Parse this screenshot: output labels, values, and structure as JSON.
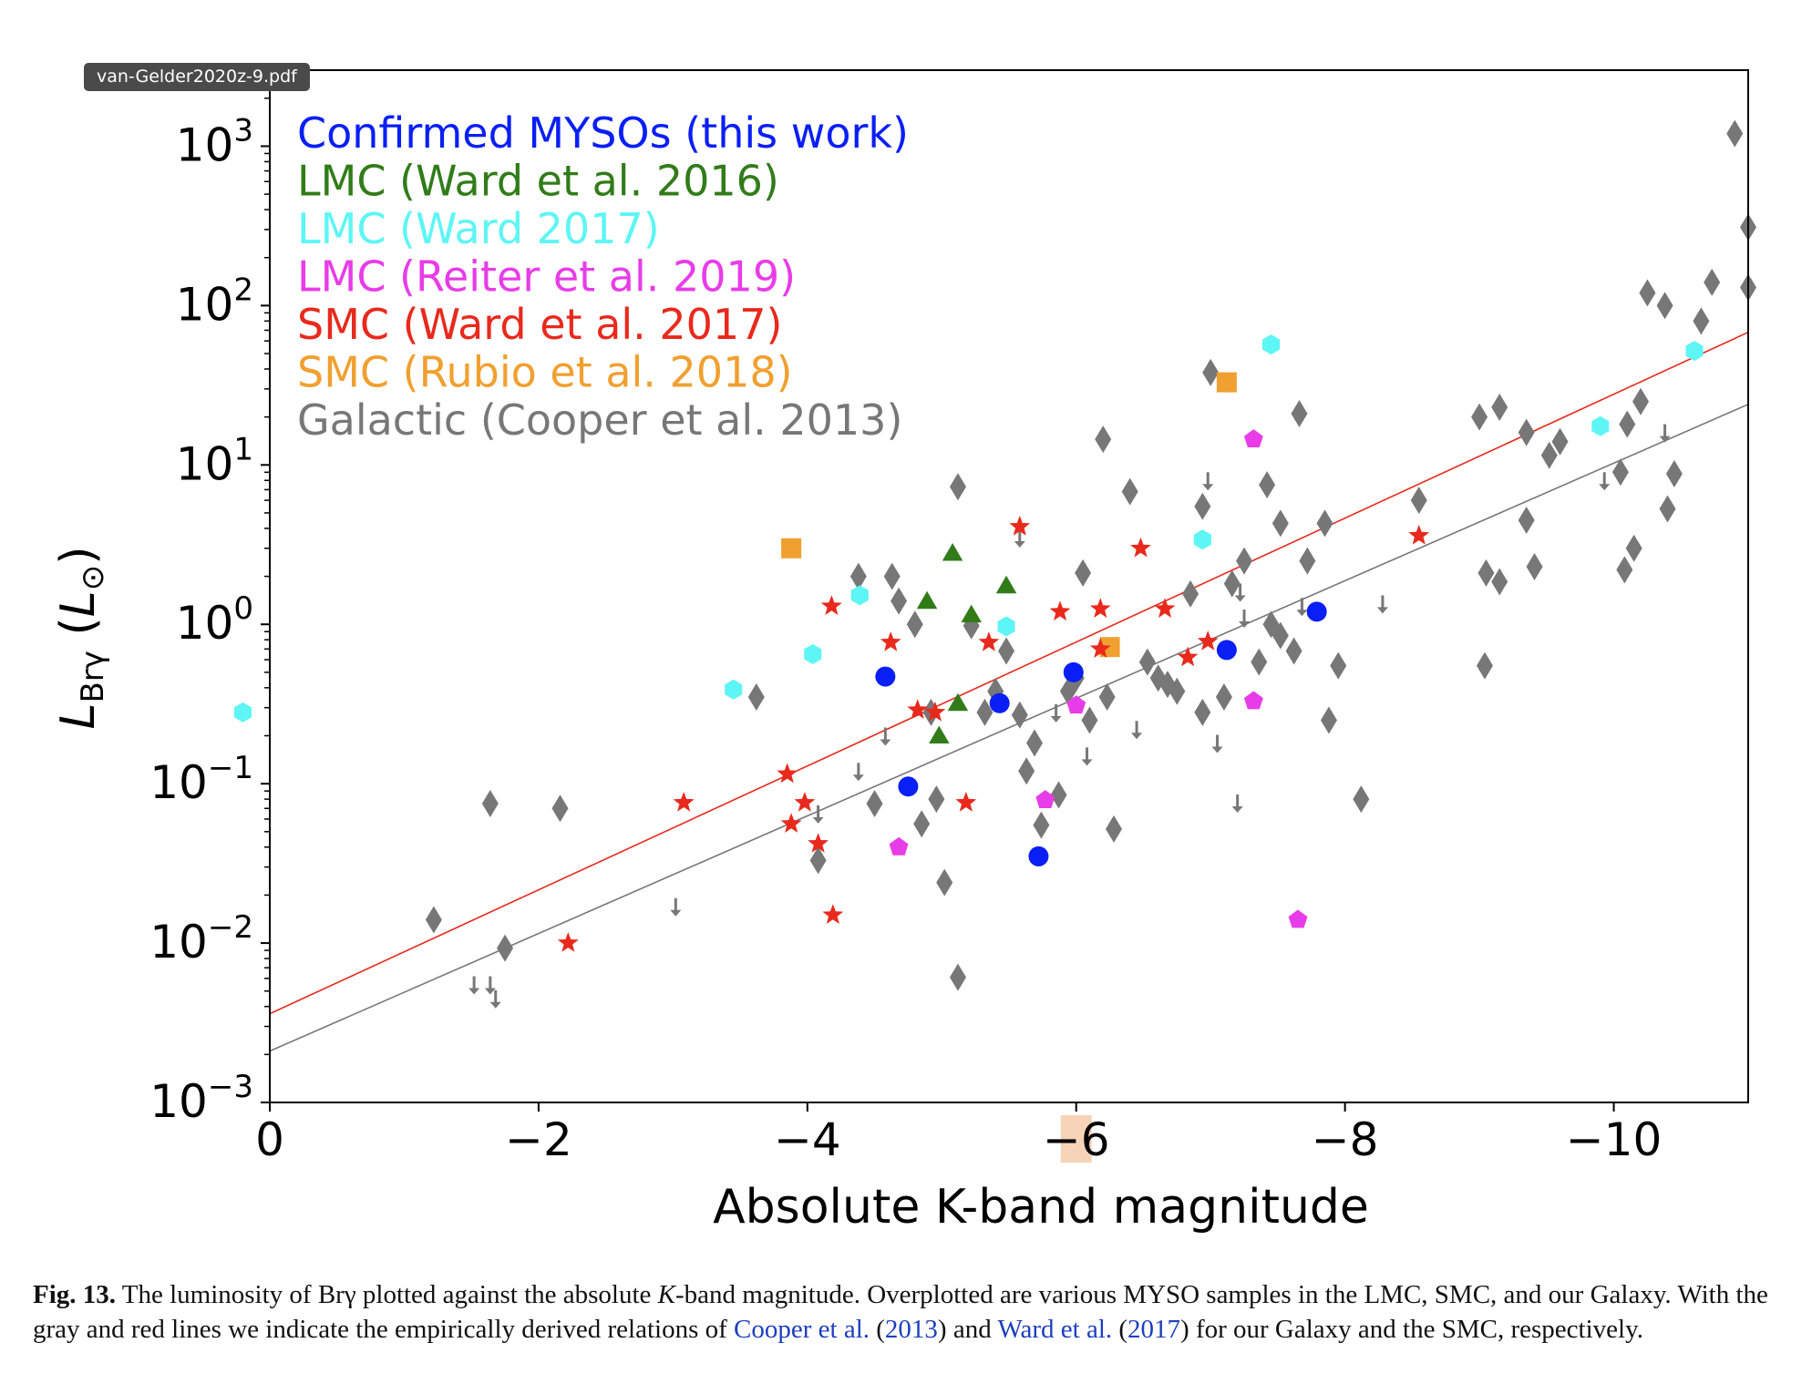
{
  "file_tab": "van-Gelder2020z-9.pdf",
  "caption": {
    "label": "Fig. 13.",
    "text_1": " The luminosity of Brγ plotted against the absolute ",
    "k_italic": "K",
    "text_2": "-band magnitude. Overplotted are various MYSO samples in the LMC, SMC, and our Galaxy. With the gray and red lines we indicate the empirically derived relations of ",
    "link_1": "Cooper et al.",
    "text_3": " (",
    "link_2": "2013",
    "text_4": ") and ",
    "link_3": "Ward et al.",
    "text_5": " (",
    "link_4": "2017",
    "text_6": ") for our Galaxy and the SMC, respectively."
  },
  "chart_data": {
    "type": "scatter",
    "xlabel": "Absolute K-band magnitude",
    "ylabel": "L_Brγ (L_⊙)",
    "xlim": [
      0,
      -11
    ],
    "ylim": [
      0.001,
      3000
    ],
    "yscale": "log",
    "x_ticks": [
      {
        "v": 0,
        "label": "0"
      },
      {
        "v": -2,
        "label": "−2"
      },
      {
        "v": -4,
        "label": "−4"
      },
      {
        "v": -6,
        "label": "−6"
      },
      {
        "v": -8,
        "label": "−8"
      },
      {
        "v": -10,
        "label": "−10"
      }
    ],
    "y_ticks": [
      {
        "v": 0.001,
        "exp": "−3"
      },
      {
        "v": 0.01,
        "exp": "−2"
      },
      {
        "v": 0.1,
        "exp": "−1"
      },
      {
        "v": 1,
        "exp": "0"
      },
      {
        "v": 10,
        "exp": "1"
      },
      {
        "v": 100,
        "exp": "2"
      },
      {
        "v": 1000,
        "exp": "3"
      }
    ],
    "highlighted_tick": "−6",
    "legend_position": "top-left",
    "fit_lines": [
      {
        "color": "#e8291c",
        "points": [
          [
            0,
            0.0036
          ],
          [
            -11,
            68
          ]
        ]
      },
      {
        "color": "#777777",
        "points": [
          [
            0,
            0.0021
          ],
          [
            -11,
            24
          ]
        ]
      }
    ],
    "series": [
      {
        "name": "Confirmed MYSOs (this work)",
        "color": "#0a1ff5",
        "marker": "circle",
        "points": [
          [
            -4.58,
            0.47
          ],
          [
            -4.75,
            0.096
          ],
          [
            -5.43,
            0.32
          ],
          [
            -5.72,
            0.035
          ],
          [
            -5.98,
            0.5
          ],
          [
            -7.12,
            0.69
          ],
          [
            -7.79,
            1.2
          ]
        ]
      },
      {
        "name": "LMC (Ward et al. 2016)",
        "color": "#317c19",
        "marker": "triangle",
        "points": [
          [
            -4.89,
            1.4
          ],
          [
            -5.08,
            2.8
          ],
          [
            -5.22,
            1.15
          ],
          [
            -5.48,
            1.75
          ],
          [
            -5.12,
            0.32
          ],
          [
            -4.98,
            0.2
          ]
        ]
      },
      {
        "name": "LMC (Ward 2017)",
        "color": "#5ef5f5",
        "marker": "hexagon",
        "points": [
          [
            0.2,
            0.28
          ],
          [
            -3.45,
            0.39
          ],
          [
            -4.04,
            0.65
          ],
          [
            -4.39,
            1.52
          ],
          [
            -5.48,
            0.97
          ],
          [
            -6.94,
            3.4
          ],
          [
            -7.45,
            57
          ],
          [
            -9.9,
            17.5
          ],
          [
            -10.6,
            52
          ]
        ]
      },
      {
        "name": "LMC (Reiter et al. 2019)",
        "color": "#e83ce8",
        "marker": "pentagon",
        "points": [
          [
            -4.68,
            0.04
          ],
          [
            -5.77,
            0.079
          ],
          [
            -6.0,
            0.31
          ],
          [
            -7.32,
            14.5
          ],
          [
            -7.32,
            0.33
          ],
          [
            -7.65,
            0.014
          ]
        ]
      },
      {
        "name": "SMC (Ward et al. 2017)",
        "color": "#e8291c",
        "marker": "star",
        "points": [
          [
            -2.22,
            0.01
          ],
          [
            -3.08,
            0.076
          ],
          [
            -3.85,
            0.115
          ],
          [
            -3.88,
            0.056
          ],
          [
            -3.98,
            0.076
          ],
          [
            -4.08,
            0.042
          ],
          [
            -4.18,
            1.3
          ],
          [
            -4.19,
            0.015
          ],
          [
            -4.62,
            0.77
          ],
          [
            -4.82,
            0.29
          ],
          [
            -4.95,
            0.28
          ],
          [
            -5.18,
            0.076
          ],
          [
            -5.35,
            0.77
          ],
          [
            -5.58,
            4.1
          ],
          [
            -5.88,
            1.2
          ],
          [
            -6.18,
            1.25
          ],
          [
            -6.18,
            0.7
          ],
          [
            -6.48,
            3.0
          ],
          [
            -6.66,
            1.25
          ],
          [
            -6.83,
            0.62
          ],
          [
            -6.98,
            0.78
          ],
          [
            -8.55,
            3.6
          ]
        ]
      },
      {
        "name": "SMC (Rubio et al. 2018)",
        "color": "#f0a030",
        "marker": "square",
        "points": [
          [
            -3.88,
            3.0
          ],
          [
            -6.25,
            0.72
          ],
          [
            -7.12,
            33
          ]
        ]
      },
      {
        "name": "Galactic (Cooper et al. 2013)",
        "color": "#777777",
        "marker": "diamond",
        "points": [
          [
            -1.22,
            0.014
          ],
          [
            -1.64,
            0.075
          ],
          [
            -1.75,
            0.0093
          ],
          [
            -2.16,
            0.07
          ],
          [
            -3.62,
            0.35
          ],
          [
            -4.08,
            0.033
          ],
          [
            -4.38,
            2.0
          ],
          [
            -4.5,
            0.075
          ],
          [
            -4.63,
            2.0
          ],
          [
            -4.68,
            1.4
          ],
          [
            -4.8,
            1.0
          ],
          [
            -4.85,
            0.056
          ],
          [
            -4.92,
            0.28
          ],
          [
            -4.96,
            0.08
          ],
          [
            -5.02,
            0.024
          ],
          [
            -5.12,
            0.0061
          ],
          [
            -5.12,
            7.3
          ],
          [
            -5.22,
            0.98
          ],
          [
            -5.32,
            0.28
          ],
          [
            -5.4,
            0.38
          ],
          [
            -5.48,
            0.68
          ],
          [
            -5.58,
            0.27
          ],
          [
            -5.63,
            0.12
          ],
          [
            -5.69,
            0.18
          ],
          [
            -5.74,
            0.055
          ],
          [
            -5.87,
            0.085
          ],
          [
            -5.94,
            0.38
          ],
          [
            -6.0,
            0.46
          ],
          [
            -6.05,
            2.1
          ],
          [
            -6.1,
            0.25
          ],
          [
            -6.2,
            14.5
          ],
          [
            -6.23,
            0.35
          ],
          [
            -6.28,
            0.052
          ],
          [
            -6.4,
            6.8
          ],
          [
            -6.53,
            0.58
          ],
          [
            -6.61,
            0.46
          ],
          [
            -6.68,
            0.42
          ],
          [
            -6.75,
            0.38
          ],
          [
            -6.85,
            1.55
          ],
          [
            -6.94,
            0.28
          ],
          [
            -6.94,
            5.5
          ],
          [
            -7.0,
            38
          ],
          [
            -7.1,
            0.35
          ],
          [
            -7.16,
            1.8
          ],
          [
            -7.25,
            2.5
          ],
          [
            -7.36,
            0.58
          ],
          [
            -7.42,
            7.5
          ],
          [
            -7.45,
            1.0
          ],
          [
            -7.52,
            4.3
          ],
          [
            -7.52,
            0.85
          ],
          [
            -7.62,
            0.68
          ],
          [
            -7.66,
            21
          ],
          [
            -7.72,
            2.5
          ],
          [
            -7.85,
            4.3
          ],
          [
            -7.88,
            0.25
          ],
          [
            -7.95,
            0.55
          ],
          [
            -8.12,
            0.08
          ],
          [
            -8.55,
            6.0
          ],
          [
            -9.0,
            20
          ],
          [
            -9.04,
            0.55
          ],
          [
            -9.05,
            2.1
          ],
          [
            -9.15,
            1.85
          ],
          [
            -9.15,
            23
          ],
          [
            -9.35,
            16
          ],
          [
            -9.35,
            4.5
          ],
          [
            -9.41,
            2.3
          ],
          [
            -9.52,
            11.5
          ],
          [
            -9.6,
            14
          ],
          [
            -10.05,
            9
          ],
          [
            -10.08,
            2.2
          ],
          [
            -10.1,
            18
          ],
          [
            -10.15,
            3.0
          ],
          [
            -10.2,
            25
          ],
          [
            -10.25,
            120
          ],
          [
            -10.38,
            100
          ],
          [
            -10.4,
            5.3
          ],
          [
            -10.45,
            8.8
          ],
          [
            -10.65,
            80
          ],
          [
            -10.73,
            140
          ],
          [
            -10.9,
            1200
          ],
          [
            -11.0,
            130
          ],
          [
            -11.0,
            310
          ]
        ]
      },
      {
        "name": "",
        "color": "#777777",
        "marker": "upper-limit",
        "points": [
          [
            -1.52,
            0.0055
          ],
          [
            -1.64,
            0.0055
          ],
          [
            -1.68,
            0.0045
          ],
          [
            -3.02,
            0.017
          ],
          [
            -4.08,
            0.065
          ],
          [
            -4.38,
            0.12
          ],
          [
            -4.58,
            0.2
          ],
          [
            -5.58,
            3.5
          ],
          [
            -5.85,
            0.28
          ],
          [
            -6.08,
            0.15
          ],
          [
            -6.45,
            0.22
          ],
          [
            -6.98,
            8.0
          ],
          [
            -7.05,
            0.18
          ],
          [
            -7.2,
            0.076
          ],
          [
            -7.22,
            1.6
          ],
          [
            -7.25,
            1.1
          ],
          [
            -7.68,
            1.3
          ],
          [
            -8.28,
            1.35
          ],
          [
            -9.93,
            8.0
          ],
          [
            -10.38,
            16
          ]
        ]
      }
    ]
  }
}
